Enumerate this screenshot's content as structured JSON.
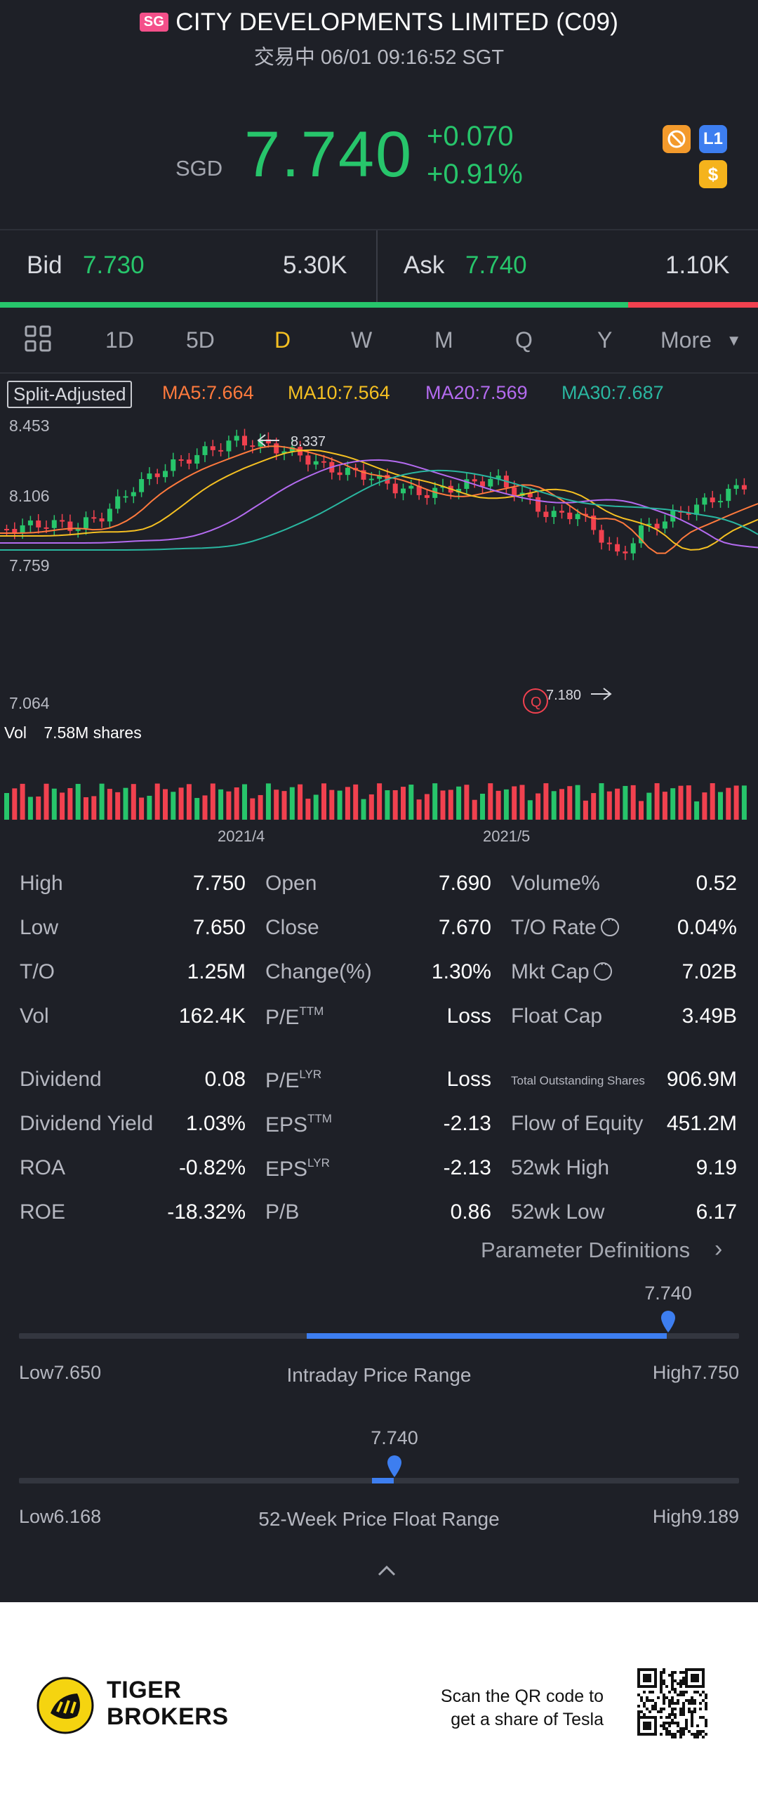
{
  "header": {
    "market_badge": "SG",
    "stock_name": "CITY DEVELOPMENTS LIMITED (C09)",
    "status": "交易中 06/01 09:16:52 SGT",
    "currency": "SGD",
    "price": "7.740",
    "change_abs": "+0.070",
    "change_pct": "+0.91%",
    "tags": [
      "L1",
      "$"
    ]
  },
  "bidask": {
    "bid_label": "Bid",
    "bid_price": "7.730",
    "bid_size": "5.30K",
    "ask_label": "Ask",
    "ask_price": "7.740",
    "ask_size": "1.10K",
    "bid_ratio": 0.83
  },
  "tabs": {
    "items": [
      "1D",
      "5D",
      "D",
      "W",
      "M",
      "Q",
      "Y",
      "More"
    ],
    "active": "D",
    "icon": "grid-icon"
  },
  "ma_legend": {
    "split": "Split-Adjusted",
    "ma5": "MA5:7.664",
    "ma10": "MA10:7.564",
    "ma20": "MA20:7.569",
    "ma30": "MA30:7.687",
    "colors": {
      "ma5": "#ff7a3d",
      "ma10": "#f5c022",
      "ma20": "#b46bf0",
      "ma30": "#2ab6a0"
    }
  },
  "chart_data": {
    "type": "candlestick",
    "y_labels": [
      "8.453",
      "8.106",
      "7.759",
      "7.064"
    ],
    "high_annotation": "8.337",
    "low_annotation": "7.180",
    "x_labels": [
      "2021/4",
      "2021/5"
    ],
    "volume_label": "Vol",
    "volume_value": "7.58M shares",
    "up_color": "#27c56b",
    "down_color": "#f1414f"
  },
  "stats": {
    "col1": [
      {
        "label": "High",
        "value": "7.750"
      },
      {
        "label": "Low",
        "value": "7.650"
      },
      {
        "label": "T/O",
        "value": "1.25M"
      },
      {
        "label": "Vol",
        "value": "162.4K"
      },
      {
        "label": "Dividend",
        "value": "0.08"
      },
      {
        "label": "Dividend Yield",
        "value": "1.03%"
      },
      {
        "label": "ROA",
        "value": "-0.82%"
      },
      {
        "label": "ROE",
        "value": "-18.32%"
      }
    ],
    "col2": [
      {
        "label": "Open",
        "value": "7.690"
      },
      {
        "label": "Close",
        "value": "7.670"
      },
      {
        "label": "Change(%)",
        "value": "1.30%"
      },
      {
        "label": "P/E",
        "sup": "TTM",
        "value": "Loss"
      },
      {
        "label": "P/E",
        "sup": "LYR",
        "value": "Loss"
      },
      {
        "label": "EPS",
        "sup": "TTM",
        "value": "-2.13"
      },
      {
        "label": "EPS",
        "sup": "LYR",
        "value": "-2.13"
      },
      {
        "label": "P/B",
        "value": "0.86"
      }
    ],
    "col3": [
      {
        "label": "Volume%",
        "value": "0.52"
      },
      {
        "label": "T/O Rate",
        "value": "0.04%"
      },
      {
        "label": "Mkt Cap",
        "value": "7.02B"
      },
      {
        "label": "Float Cap",
        "value": "3.49B"
      },
      {
        "label": "Total Outstanding Shares",
        "value": "906.9M"
      },
      {
        "label": "Flow of Equity",
        "value": "451.2M"
      },
      {
        "label": "52wk High",
        "value": "9.19"
      },
      {
        "label": "52wk Low",
        "value": "6.17"
      }
    ],
    "param_defs": "Parameter Definitions"
  },
  "ranges": {
    "intraday": {
      "current": "7.740",
      "low_label": "Low7.650",
      "high_label": "High7.750",
      "title": "Intraday Price Range",
      "fill_start": 0.4,
      "position": 0.9
    },
    "week52": {
      "current": "7.740",
      "low_label": "Low6.168",
      "high_label": "High9.189",
      "title": "52-Week Price Float Range",
      "fill_start": 0.49,
      "position": 0.52
    }
  },
  "footer": {
    "brand_line1": "TIGER",
    "brand_line2": "BROKERS",
    "promo_line1": "Scan the QR code to",
    "promo_line2": "get a share of Tesla"
  }
}
